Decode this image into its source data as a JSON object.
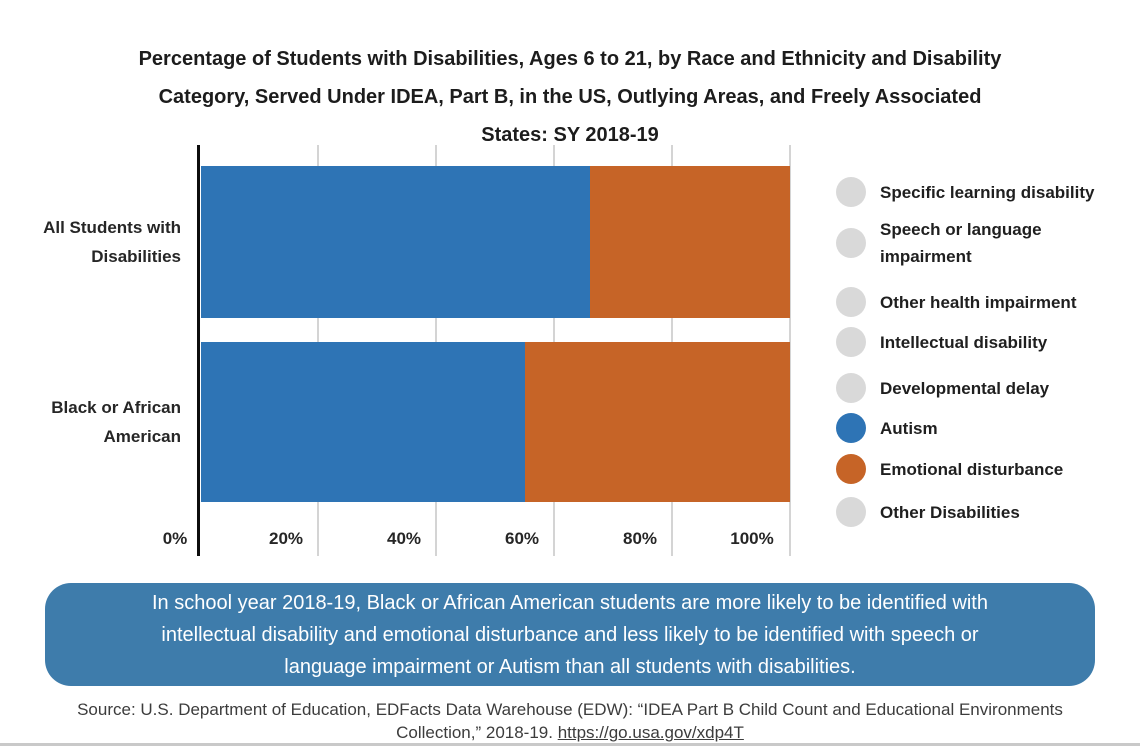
{
  "title": {
    "lines": [
      "Percentage of Students with Disabilities, Ages 6 to 21, by Race and Ethnicity and Disability",
      "Category, Served Under IDEA, Part B, in the US, Outlying Areas, and Freely Associated",
      "States: SY 2018-19"
    ]
  },
  "chart_data": {
    "type": "bar",
    "orientation": "horizontal",
    "stacked": true,
    "title": "Percentage of Students with Disabilities, Ages 6 to 21, by Race and Ethnicity and Disability Category, Served Under IDEA, Part B, in the US, Outlying Areas, and Freely Associated States: SY 2018-19",
    "categories": [
      "All Students with Disabilities",
      "Black or African American"
    ],
    "series": [
      {
        "name": "Autism",
        "color": "#2E74B5",
        "values": [
          66,
          55
        ]
      },
      {
        "name": "Emotional disturbance",
        "color": "#C66427",
        "values": [
          34,
          45
        ]
      }
    ],
    "x_ticks": [
      "0%",
      "20%",
      "40%",
      "60%",
      "80%",
      "100%"
    ],
    "xlim": [
      0,
      100
    ],
    "grid": true,
    "legend_position": "right",
    "note": "Only the Autism and Emotional disturbance legend items are active; each bar spans 0-100%."
  },
  "y_labels": [
    {
      "lines": [
        "All Students with",
        "Disabilities"
      ]
    },
    {
      "lines": [
        "Black or African",
        "American"
      ]
    }
  ],
  "x_ticks": [
    "0%",
    "20%",
    "40%",
    "60%",
    "80%",
    "100%"
  ],
  "legend": {
    "items": [
      {
        "label": "Specific learning disability",
        "color": "#D9D9D9",
        "active": false
      },
      {
        "label": "Speech or language impairment",
        "color": "#D9D9D9",
        "active": false
      },
      {
        "label": "Other health impairment",
        "color": "#D9D9D9",
        "active": false
      },
      {
        "label": "Intellectual disability",
        "color": "#D9D9D9",
        "active": false
      },
      {
        "label": "Developmental delay",
        "color": "#D9D9D9",
        "active": false
      },
      {
        "label": "Autism",
        "color": "#2E74B5",
        "active": true
      },
      {
        "label": "Emotional disturbance",
        "color": "#C66427",
        "active": true
      },
      {
        "label": "Other Disabilities",
        "color": "#D9D9D9",
        "active": false
      }
    ]
  },
  "callout": {
    "bg_color": "#3E7CAB",
    "lines": [
      "In school year 2018-19, Black or African American students are more likely to be identified with",
      "intellectual disability and emotional disturbance and less likely to be identified with speech or",
      "language impairment or Autism than all students with disabilities."
    ]
  },
  "source": {
    "line1": "Source: U.S. Department of Education, EDFacts Data Warehouse (EDW): “IDEA Part B Child Count and Educational Environments",
    "line2_prefix": "Collection,” 2018-19. ",
    "link_text": "https://go.usa.gov/xdp4T"
  }
}
